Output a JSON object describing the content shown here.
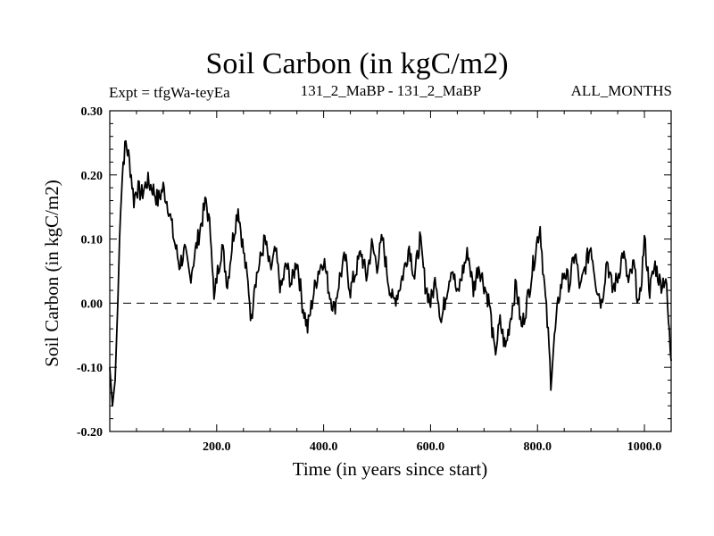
{
  "chart_data": {
    "type": "line",
    "title": "Soil Carbon (in kgC/m2)",
    "subtitle_left": "Expt = tfgWa-teyEa",
    "subtitle_center": "131_2_MaBP - 131_2_MaBP",
    "subtitle_right": "ALL_MONTHS",
    "xlabel": "Time (in years since start)",
    "ylabel": "Soil Carbon (in kgC/m2)",
    "xlim": [
      0,
      1050
    ],
    "ylim": [
      -0.2,
      0.3
    ],
    "xticks": [
      200,
      400,
      600,
      800,
      1000
    ],
    "xtick_labels": [
      "200.0",
      "400.0",
      "600.0",
      "800.0",
      "1000.0"
    ],
    "yticks": [
      -0.2,
      -0.1,
      0.0,
      0.1,
      0.2,
      0.3
    ],
    "ytick_labels": [
      "-0.20",
      "-0.10",
      "0.00",
      "0.10",
      "0.20",
      "0.30"
    ],
    "reference_line": {
      "y": 0.0,
      "style": "dashed"
    },
    "series": [
      {
        "name": "Soil Carbon",
        "x": [
          0,
          5,
          10,
          15,
          20,
          25,
          30,
          35,
          40,
          45,
          50,
          60,
          70,
          80,
          90,
          100,
          110,
          120,
          130,
          140,
          150,
          160,
          170,
          180,
          190,
          195,
          200,
          210,
          220,
          230,
          240,
          250,
          260,
          265,
          270,
          280,
          290,
          300,
          310,
          320,
          330,
          340,
          350,
          360,
          370,
          380,
          390,
          400,
          410,
          420,
          430,
          440,
          450,
          460,
          470,
          480,
          490,
          500,
          510,
          520,
          530,
          540,
          550,
          560,
          570,
          580,
          590,
          600,
          610,
          620,
          630,
          640,
          650,
          660,
          670,
          680,
          690,
          700,
          710,
          720,
          730,
          740,
          750,
          760,
          770,
          780,
          790,
          800,
          805,
          810,
          820,
          825,
          830,
          840,
          850,
          860,
          870,
          880,
          890,
          900,
          910,
          920,
          930,
          940,
          950,
          960,
          970,
          980,
          990,
          1000,
          1010,
          1020,
          1030,
          1040,
          1045,
          1050
        ],
        "values": [
          -0.1,
          -0.16,
          -0.12,
          0.0,
          0.15,
          0.22,
          0.25,
          0.23,
          0.2,
          0.16,
          0.18,
          0.17,
          0.19,
          0.18,
          0.16,
          0.18,
          0.15,
          0.1,
          0.06,
          0.08,
          0.04,
          0.08,
          0.12,
          0.16,
          0.1,
          0.0,
          0.04,
          0.09,
          0.03,
          0.1,
          0.15,
          0.08,
          0.02,
          -0.03,
          0.03,
          0.06,
          0.1,
          0.05,
          0.08,
          0.02,
          0.06,
          0.03,
          0.07,
          0.0,
          -0.04,
          0.01,
          0.05,
          0.07,
          0.02,
          -0.01,
          0.04,
          0.07,
          0.02,
          0.05,
          0.08,
          0.04,
          0.09,
          0.06,
          0.1,
          0.04,
          0.0,
          0.02,
          0.05,
          0.09,
          0.04,
          0.1,
          0.03,
          0.0,
          0.04,
          -0.03,
          0.02,
          0.06,
          0.01,
          0.05,
          0.08,
          0.02,
          0.06,
          0.03,
          0.0,
          -0.08,
          -0.03,
          -0.07,
          -0.02,
          0.03,
          -0.04,
          0.0,
          0.05,
          0.1,
          0.12,
          0.06,
          -0.05,
          -0.12,
          -0.07,
          0.01,
          0.05,
          0.03,
          0.08,
          0.02,
          0.06,
          0.09,
          0.03,
          0.0,
          0.07,
          0.02,
          0.04,
          0.08,
          0.03,
          0.06,
          -0.01,
          0.1,
          0.02,
          0.06,
          0.03,
          0.04,
          -0.03,
          -0.09
        ]
      }
    ]
  }
}
